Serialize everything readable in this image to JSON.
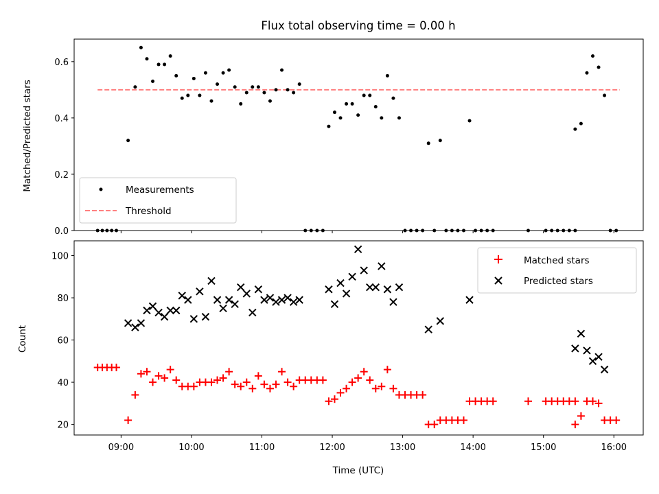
{
  "colors": {
    "measurement": "#000000",
    "threshold": "#ff7f7f",
    "matched": "#ff0000",
    "predicted": "#000000"
  },
  "chart_data": [
    {
      "type": "scatter",
      "title": "Flux total observing time = 0.00 h",
      "xlabel": "",
      "ylabel": "Matched/Predicted stars",
      "xlim": [
        "08:20",
        "16:25"
      ],
      "ylim": [
        0,
        0.68
      ],
      "yticks": [
        "0.0",
        "0.2",
        "0.4",
        "0.6"
      ],
      "legend": {
        "position": "lower-left",
        "entries": [
          "Measurements",
          "Threshold"
        ]
      },
      "threshold": {
        "name": "Threshold",
        "value": 0.5,
        "x": [
          "08:40",
          "16:05"
        ]
      },
      "series": [
        {
          "name": "Measurements",
          "points": [
            [
              "08:40",
              0
            ],
            [
              "08:44",
              0
            ],
            [
              "08:48",
              0
            ],
            [
              "08:52",
              0
            ],
            [
              "08:56",
              0
            ],
            [
              "09:06",
              0.32
            ],
            [
              "09:12",
              0.51
            ],
            [
              "09:17",
              0.65
            ],
            [
              "09:22",
              0.61
            ],
            [
              "09:27",
              0.53
            ],
            [
              "09:32",
              0.59
            ],
            [
              "09:37",
              0.59
            ],
            [
              "09:42",
              0.62
            ],
            [
              "09:47",
              0.55
            ],
            [
              "09:52",
              0.47
            ],
            [
              "09:57",
              0.48
            ],
            [
              "10:02",
              0.54
            ],
            [
              "10:07",
              0.48
            ],
            [
              "10:12",
              0.56
            ],
            [
              "10:17",
              0.46
            ],
            [
              "10:22",
              0.52
            ],
            [
              "10:27",
              0.56
            ],
            [
              "10:32",
              0.57
            ],
            [
              "10:37",
              0.51
            ],
            [
              "10:42",
              0.45
            ],
            [
              "10:47",
              0.49
            ],
            [
              "10:52",
              0.51
            ],
            [
              "10:57",
              0.51
            ],
            [
              "11:02",
              0.49
            ],
            [
              "11:07",
              0.46
            ],
            [
              "11:12",
              0.5
            ],
            [
              "11:17",
              0.57
            ],
            [
              "11:22",
              0.5
            ],
            [
              "11:27",
              0.49
            ],
            [
              "11:32",
              0.52
            ],
            [
              "11:37",
              0
            ],
            [
              "11:42",
              0
            ],
            [
              "11:47",
              0
            ],
            [
              "11:52",
              0
            ],
            [
              "11:57",
              0.37
            ],
            [
              "12:02",
              0.42
            ],
            [
              "12:07",
              0.4
            ],
            [
              "12:12",
              0.45
            ],
            [
              "12:17",
              0.45
            ],
            [
              "12:22",
              0.41
            ],
            [
              "12:27",
              0.48
            ],
            [
              "12:32",
              0.48
            ],
            [
              "12:37",
              0.44
            ],
            [
              "12:42",
              0.4
            ],
            [
              "12:47",
              0.55
            ],
            [
              "12:52",
              0.47
            ],
            [
              "12:57",
              0.4
            ],
            [
              "13:02",
              0
            ],
            [
              "13:07",
              0
            ],
            [
              "13:12",
              0
            ],
            [
              "13:17",
              0
            ],
            [
              "13:22",
              0.31
            ],
            [
              "13:27",
              0
            ],
            [
              "13:32",
              0.32
            ],
            [
              "13:37",
              0
            ],
            [
              "13:42",
              0
            ],
            [
              "13:47",
              0
            ],
            [
              "13:52",
              0
            ],
            [
              "13:57",
              0.39
            ],
            [
              "14:02",
              0
            ],
            [
              "14:07",
              0
            ],
            [
              "14:12",
              0
            ],
            [
              "14:17",
              0
            ],
            [
              "14:47",
              0
            ],
            [
              "15:02",
              0
            ],
            [
              "15:07",
              0
            ],
            [
              "15:12",
              0
            ],
            [
              "15:17",
              0
            ],
            [
              "15:22",
              0
            ],
            [
              "15:27",
              0
            ],
            [
              "15:27",
              0.36
            ],
            [
              "15:32",
              0.38
            ],
            [
              "15:37",
              0.56
            ],
            [
              "15:42",
              0.62
            ],
            [
              "15:47",
              0.58
            ],
            [
              "15:52",
              0.48
            ],
            [
              "15:57",
              0
            ],
            [
              "16:02",
              0
            ]
          ]
        }
      ]
    },
    {
      "type": "scatter",
      "title": "",
      "xlabel": "Time (UTC)",
      "ylabel": "Count",
      "xlim": [
        "08:20",
        "16:25"
      ],
      "ylim": [
        15,
        107
      ],
      "xticks": [
        "09:00",
        "10:00",
        "11:00",
        "12:00",
        "13:00",
        "14:00",
        "15:00",
        "16:00"
      ],
      "yticks": [
        "20",
        "40",
        "60",
        "80",
        "100"
      ],
      "legend": {
        "position": "upper-right",
        "entries": [
          "Matched stars",
          "Predicted stars"
        ]
      },
      "series": [
        {
          "name": "Matched stars",
          "marker": "+",
          "points": [
            [
              "08:40",
              47
            ],
            [
              "08:44",
              47
            ],
            [
              "08:48",
              47
            ],
            [
              "08:52",
              47
            ],
            [
              "08:56",
              47
            ],
            [
              "09:06",
              22
            ],
            [
              "09:12",
              34
            ],
            [
              "09:17",
              44
            ],
            [
              "09:22",
              45
            ],
            [
              "09:27",
              40
            ],
            [
              "09:32",
              43
            ],
            [
              "09:37",
              42
            ],
            [
              "09:42",
              46
            ],
            [
              "09:47",
              41
            ],
            [
              "09:52",
              38
            ],
            [
              "09:57",
              38
            ],
            [
              "10:02",
              38
            ],
            [
              "10:07",
              40
            ],
            [
              "10:12",
              40
            ],
            [
              "10:17",
              40
            ],
            [
              "10:22",
              41
            ],
            [
              "10:27",
              42
            ],
            [
              "10:32",
              45
            ],
            [
              "10:37",
              39
            ],
            [
              "10:42",
              38
            ],
            [
              "10:47",
              40
            ],
            [
              "10:52",
              37
            ],
            [
              "10:57",
              43
            ],
            [
              "11:02",
              39
            ],
            [
              "11:07",
              37
            ],
            [
              "11:12",
              39
            ],
            [
              "11:17",
              45
            ],
            [
              "11:22",
              40
            ],
            [
              "11:27",
              38
            ],
            [
              "11:32",
              41
            ],
            [
              "11:37",
              41
            ],
            [
              "11:42",
              41
            ],
            [
              "11:47",
              41
            ],
            [
              "11:52",
              41
            ],
            [
              "11:57",
              31
            ],
            [
              "12:02",
              32
            ],
            [
              "12:07",
              35
            ],
            [
              "12:12",
              37
            ],
            [
              "12:17",
              40
            ],
            [
              "12:22",
              42
            ],
            [
              "12:27",
              45
            ],
            [
              "12:32",
              41
            ],
            [
              "12:37",
              37
            ],
            [
              "12:42",
              38
            ],
            [
              "12:47",
              46
            ],
            [
              "12:52",
              37
            ],
            [
              "12:57",
              34
            ],
            [
              "13:02",
              34
            ],
            [
              "13:07",
              34
            ],
            [
              "13:12",
              34
            ],
            [
              "13:17",
              34
            ],
            [
              "13:22",
              20
            ],
            [
              "13:27",
              20
            ],
            [
              "13:32",
              22
            ],
            [
              "13:37",
              22
            ],
            [
              "13:42",
              22
            ],
            [
              "13:47",
              22
            ],
            [
              "13:52",
              22
            ],
            [
              "13:57",
              31
            ],
            [
              "14:02",
              31
            ],
            [
              "14:07",
              31
            ],
            [
              "14:12",
              31
            ],
            [
              "14:17",
              31
            ],
            [
              "14:47",
              31
            ],
            [
              "15:02",
              31
            ],
            [
              "15:07",
              31
            ],
            [
              "15:12",
              31
            ],
            [
              "15:17",
              31
            ],
            [
              "15:22",
              31
            ],
            [
              "15:27",
              31
            ],
            [
              "15:27",
              20
            ],
            [
              "15:32",
              24
            ],
            [
              "15:37",
              31
            ],
            [
              "15:42",
              31
            ],
            [
              "15:47",
              30
            ],
            [
              "15:52",
              22
            ],
            [
              "15:57",
              22
            ],
            [
              "16:02",
              22
            ]
          ]
        },
        {
          "name": "Predicted stars",
          "marker": "x",
          "points": [
            [
              "09:06",
              68
            ],
            [
              "09:12",
              66
            ],
            [
              "09:17",
              68
            ],
            [
              "09:22",
              74
            ],
            [
              "09:27",
              76
            ],
            [
              "09:32",
              73
            ],
            [
              "09:37",
              71
            ],
            [
              "09:42",
              74
            ],
            [
              "09:47",
              74
            ],
            [
              "09:52",
              81
            ],
            [
              "09:57",
              79
            ],
            [
              "10:02",
              70
            ],
            [
              "10:07",
              83
            ],
            [
              "10:12",
              71
            ],
            [
              "10:17",
              88
            ],
            [
              "10:22",
              79
            ],
            [
              "10:27",
              75
            ],
            [
              "10:32",
              79
            ],
            [
              "10:37",
              77
            ],
            [
              "10:42",
              85
            ],
            [
              "10:47",
              82
            ],
            [
              "10:52",
              73
            ],
            [
              "10:57",
              84
            ],
            [
              "11:02",
              79
            ],
            [
              "11:07",
              80
            ],
            [
              "11:12",
              78
            ],
            [
              "11:17",
              79
            ],
            [
              "11:22",
              80
            ],
            [
              "11:27",
              78
            ],
            [
              "11:32",
              79
            ],
            [
              "11:57",
              84
            ],
            [
              "12:02",
              77
            ],
            [
              "12:07",
              87
            ],
            [
              "12:12",
              82
            ],
            [
              "12:17",
              90
            ],
            [
              "12:22",
              103
            ],
            [
              "12:27",
              93
            ],
            [
              "12:32",
              85
            ],
            [
              "12:37",
              85
            ],
            [
              "12:42",
              95
            ],
            [
              "12:47",
              84
            ],
            [
              "12:52",
              78
            ],
            [
              "12:57",
              85
            ],
            [
              "13:22",
              65
            ],
            [
              "13:32",
              69
            ],
            [
              "13:57",
              79
            ],
            [
              "15:27",
              56
            ],
            [
              "15:32",
              63
            ],
            [
              "15:37",
              55
            ],
            [
              "15:42",
              50
            ],
            [
              "15:47",
              52
            ],
            [
              "15:52",
              46
            ]
          ]
        }
      ]
    }
  ]
}
